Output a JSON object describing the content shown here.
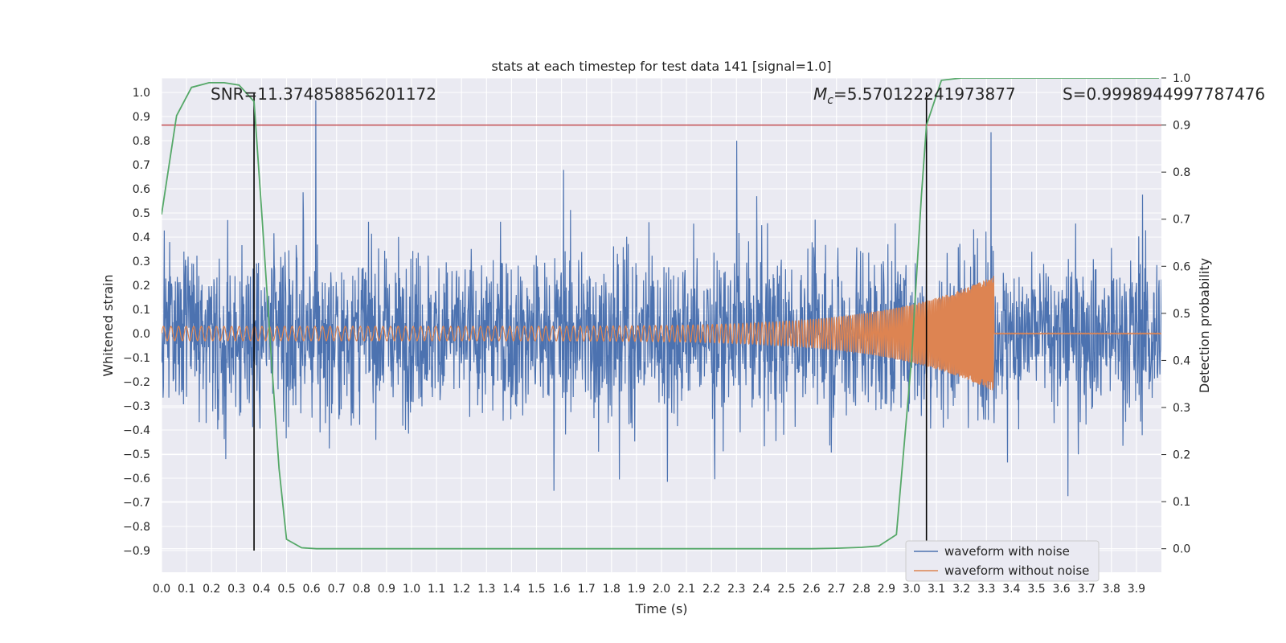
{
  "chart_data": {
    "type": "line",
    "title": "stats at each timestep for test data 141 [signal=1.0]",
    "xlabel": "Time (s)",
    "ylabel": "Whitened strain",
    "ylabel_right": "Detection probability",
    "xlim": [
      0.0,
      4.0
    ],
    "ylim": [
      -0.99,
      1.06
    ],
    "ylim_right": [
      -0.05,
      1.0
    ],
    "grid": true,
    "legend_position": "lower-right",
    "x_ticks": [
      "0.0",
      "0.1",
      "0.2",
      "0.3",
      "0.4",
      "0.5",
      "0.6",
      "0.7",
      "0.8",
      "0.9",
      "1.0",
      "1.1",
      "1.2",
      "1.3",
      "1.4",
      "1.5",
      "1.6",
      "1.7",
      "1.8",
      "1.9",
      "2.0",
      "2.1",
      "2.2",
      "2.3",
      "2.4",
      "2.5",
      "2.6",
      "2.7",
      "2.8",
      "2.9",
      "3.0",
      "3.1",
      "3.2",
      "3.3",
      "3.4",
      "3.5",
      "3.6",
      "3.7",
      "3.8",
      "3.9"
    ],
    "y_ticks_left": [
      "1.0",
      "0.9",
      "0.8",
      "0.7",
      "0.6",
      "0.5",
      "0.4",
      "0.3",
      "0.2",
      "0.1",
      "0.0",
      "−0.1",
      "−0.2",
      "−0.3",
      "−0.4",
      "−0.5",
      "−0.6",
      "−0.7",
      "−0.8",
      "−0.9"
    ],
    "y_ticks_right": [
      "1.0",
      "0.9",
      "0.8",
      "0.7",
      "0.6",
      "0.5",
      "0.4",
      "0.3",
      "0.2",
      "0.1",
      "0.0"
    ],
    "annotations": {
      "snr": "SNR=11.374858856201172",
      "mc_symbol": "M",
      "mc_sub": "c",
      "mc_value": "=5.570122241973877",
      "s": "S=0.9998944997787476"
    },
    "series": [
      {
        "name": "waveform with noise",
        "color": "#4c72b0",
        "description_stats": {
          "typical_amplitude": 0.25,
          "max": 1.0,
          "min": -0.9
        }
      },
      {
        "name": "waveform without noise",
        "color": "#dd8452",
        "chirp": {
          "start_amplitude": 0.03,
          "peak_amplitude": 0.24,
          "merger_time": 3.33,
          "start_freq_hz": 33,
          "end_freq_hz": 280
        }
      },
      {
        "axis": "right",
        "color": "#55a868",
        "x": [
          0.0,
          0.06,
          0.12,
          0.19,
          0.25,
          0.31,
          0.37,
          0.4,
          0.44,
          0.47,
          0.5,
          0.56,
          0.62,
          0.7,
          1.0,
          2.0,
          2.6,
          2.7,
          2.8,
          2.87,
          2.94,
          3.0,
          3.04,
          3.06,
          3.12,
          3.2,
          3.5,
          3.99
        ],
        "y": [
          0.71,
          0.92,
          0.98,
          0.99,
          0.99,
          0.985,
          0.95,
          0.72,
          0.4,
          0.17,
          0.02,
          0.002,
          0.0,
          0.0,
          0.0,
          0.0,
          0.0,
          0.001,
          0.003,
          0.006,
          0.03,
          0.4,
          0.75,
          0.9,
          0.995,
          1.0,
          1.0,
          1.0
        ]
      }
    ],
    "reference_lines": {
      "threshold_right": {
        "value": 0.9,
        "color": "#c44e52"
      },
      "vertical_markers": [
        {
          "x": 0.37,
          "range": [
            -0.9,
            1.0
          ],
          "color": "#000000"
        },
        {
          "x": 3.06,
          "range": [
            -0.9,
            1.0
          ],
          "color": "#000000"
        }
      ]
    }
  }
}
